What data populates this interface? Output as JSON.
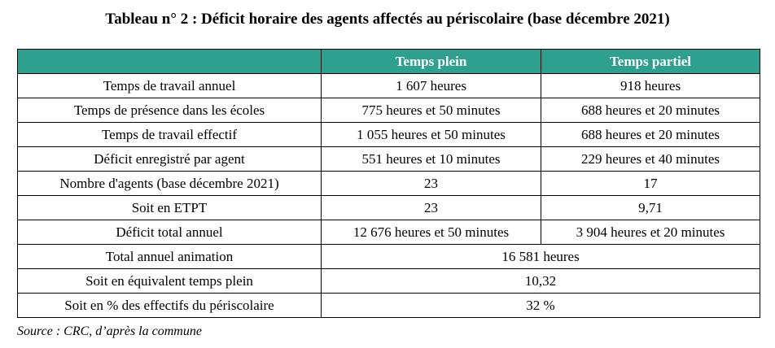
{
  "title": "Tableau n° 2 :  Déficit horaire des agents affectés au périscolaire (base décembre 2021)",
  "colors": {
    "header_bg": "#2f9f90",
    "header_text": "#ffffff"
  },
  "table": {
    "headers": [
      "",
      "Temps plein",
      "Temps partiel"
    ],
    "rows": [
      {
        "label": "Temps de travail annuel",
        "plein": "1 607 heures",
        "partiel": "918 heures"
      },
      {
        "label": "Temps de présence dans les écoles",
        "plein": "775 heures et 50 minutes",
        "partiel": "688 heures et 20 minutes"
      },
      {
        "label": "Temps de travail effectif",
        "plein": "1 055 heures et 50 minutes",
        "partiel": "688 heures et 20 minutes"
      },
      {
        "label": "Déficit enregistré par agent",
        "plein": "551 heures et 10 minutes",
        "partiel": "229 heures et 40 minutes"
      },
      {
        "label": "Nombre d'agents (base décembre 2021)",
        "plein": "23",
        "partiel": "17"
      },
      {
        "label": "Soit en ETPT",
        "plein": "23",
        "partiel": "9,71"
      },
      {
        "label": "Déficit total annuel",
        "plein": "12 676 heures et 50 minutes",
        "partiel": "3 904 heures et 20 minutes"
      }
    ],
    "merged_rows": [
      {
        "label": "Total annuel animation",
        "value": "16 581 heures"
      },
      {
        "label": "Soit en équivalent temps plein",
        "value": "10,32"
      },
      {
        "label": "Soit en % des effectifs du périscolaire",
        "value": "32 %"
      }
    ]
  },
  "source": "Source : CRC, d’après la commune"
}
